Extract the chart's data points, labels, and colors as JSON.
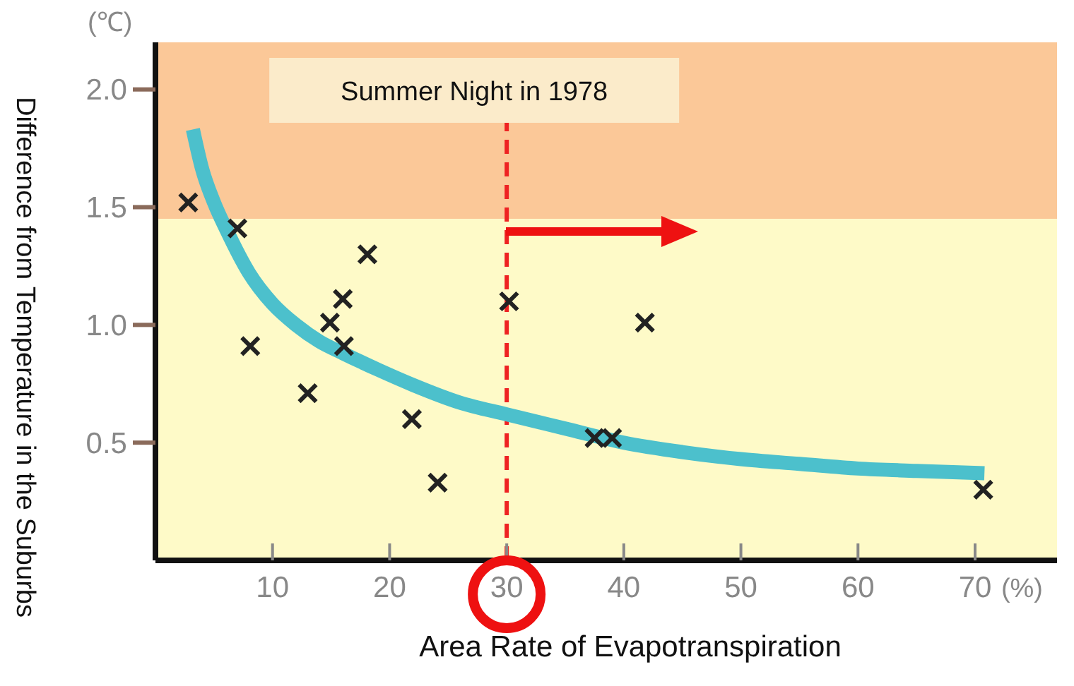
{
  "chart_data": {
    "type": "scatter",
    "xlabel": "Area Rate of Evapotranspiration",
    "ylabel": "Difference from Temperature in the Suburbs",
    "xlim": [
      0,
      77
    ],
    "ylim": [
      0,
      2.2
    ],
    "xticks": [
      10,
      20,
      30,
      40,
      50,
      60,
      70
    ],
    "yticks": [
      {
        "value": 0.5,
        "label": "0.5"
      },
      {
        "value": 1,
        "label": "1.0"
      },
      {
        "value": 1.5,
        "label": "1.5"
      },
      {
        "value": 2,
        "label": "2.0"
      }
    ],
    "grid": false,
    "series": [
      {
        "type": "line",
        "color": "#4cc0cc",
        "marker": "none",
        "line_style": "solid",
        "x": [
          3.2,
          4,
          5,
          6.1,
          8,
          10,
          12,
          14,
          16,
          19,
          22,
          26,
          30,
          35,
          40,
          45,
          50,
          55,
          60,
          65,
          70.8
        ],
        "values": [
          1.83,
          1.66,
          1.52,
          1.4,
          1.22,
          1.09,
          1.0,
          0.93,
          0.88,
          0.81,
          0.745,
          0.67,
          0.62,
          0.56,
          0.5,
          0.46,
          0.43,
          0.41,
          0.39,
          0.38,
          0.37
        ]
      },
      {
        "type": "scatter",
        "color": "#222222",
        "marker": "cross",
        "x": [
          2.8,
          7.0,
          8.1,
          13.0,
          14.9,
          16.0,
          16.1,
          18.1,
          21.9,
          24.1,
          30.2,
          37.5,
          39.0,
          41.8,
          70.7
        ],
        "values": [
          1.52,
          1.41,
          0.91,
          0.71,
          1.01,
          1.11,
          0.91,
          1.3,
          0.6,
          0.33,
          1.1,
          0.52,
          0.52,
          1.01,
          0.3
        ]
      }
    ],
    "bands": [
      {
        "axis": "y",
        "from": 1.45,
        "to": 2.2,
        "color": "#fbc898"
      },
      {
        "axis": "y",
        "from": 0,
        "to": 1.45,
        "color": "#fefac8"
      }
    ],
    "ref_lines": [
      {
        "axis": "x",
        "value": 30,
        "label": "Summer Night in 1978",
        "color": "#ee2222",
        "line_style": "dashed"
      }
    ],
    "annotations": [
      "(℃)",
      "(%)"
    ]
  }
}
